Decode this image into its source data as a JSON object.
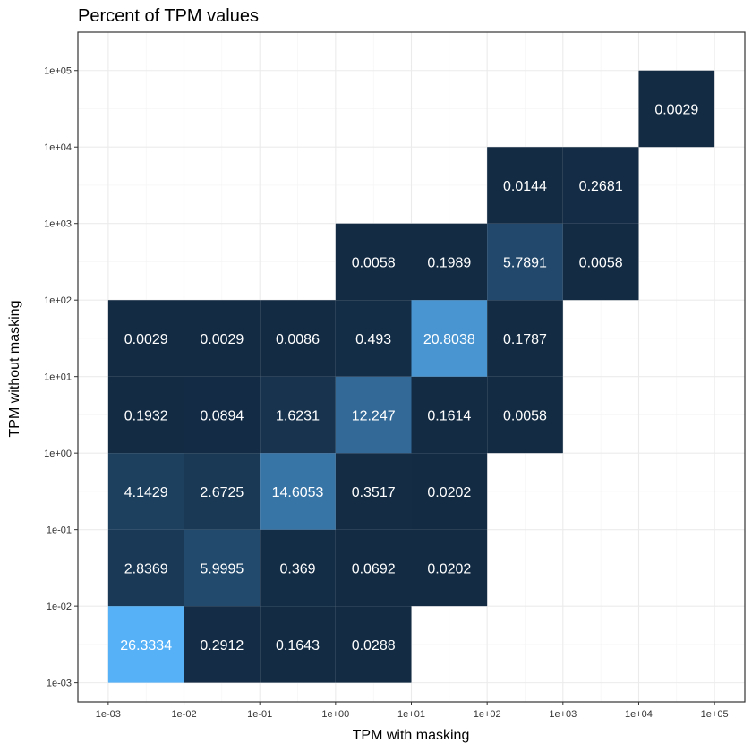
{
  "chart_data": {
    "type": "heatmap",
    "title": "Percent of TPM values",
    "xlabel": "TPM with masking",
    "ylabel": "TPM without masking",
    "x_ticks": [
      "1e-03",
      "1e-02",
      "1e-01",
      "1e+00",
      "1e+01",
      "1e+02",
      "1e+03",
      "1e+04",
      "1e+05"
    ],
    "y_ticks": [
      "1e-03",
      "1e-02",
      "1e-01",
      "1e+00",
      "1e+01",
      "1e+02",
      "1e+03",
      "1e+04",
      "1e+05"
    ],
    "xlim_log10": [
      -3.4,
      5.4
    ],
    "ylim_log10": [
      -3.25,
      5.5
    ],
    "grid": true,
    "color_scale": {
      "low": "#132B43",
      "high": "#56B1F7"
    },
    "cells": [
      {
        "x": [
          -3,
          -2
        ],
        "y": [
          -3,
          -2
        ],
        "value": 26.3334,
        "label": "26.3334"
      },
      {
        "x": [
          -2,
          -1
        ],
        "y": [
          -3,
          -2
        ],
        "value": 0.2912,
        "label": "0.2912"
      },
      {
        "x": [
          -1,
          0
        ],
        "y": [
          -3,
          -2
        ],
        "value": 0.1643,
        "label": "0.1643"
      },
      {
        "x": [
          0,
          1
        ],
        "y": [
          -3,
          -2
        ],
        "value": 0.0288,
        "label": "0.0288"
      },
      {
        "x": [
          -3,
          -2
        ],
        "y": [
          -2,
          -1
        ],
        "value": 2.8369,
        "label": "2.8369"
      },
      {
        "x": [
          -2,
          -1
        ],
        "y": [
          -2,
          -1
        ],
        "value": 5.9995,
        "label": "5.9995"
      },
      {
        "x": [
          -1,
          0
        ],
        "y": [
          -2,
          -1
        ],
        "value": 0.369,
        "label": "0.369"
      },
      {
        "x": [
          0,
          1
        ],
        "y": [
          -2,
          -1
        ],
        "value": 0.0692,
        "label": "0.0692"
      },
      {
        "x": [
          1,
          2
        ],
        "y": [
          -2,
          -1
        ],
        "value": 0.0202,
        "label": "0.0202"
      },
      {
        "x": [
          -3,
          -2
        ],
        "y": [
          -1,
          0
        ],
        "value": 4.1429,
        "label": "4.1429"
      },
      {
        "x": [
          -2,
          -1
        ],
        "y": [
          -1,
          0
        ],
        "value": 2.6725,
        "label": "2.6725"
      },
      {
        "x": [
          -1,
          0
        ],
        "y": [
          -1,
          0
        ],
        "value": 14.6053,
        "label": "14.6053"
      },
      {
        "x": [
          0,
          1
        ],
        "y": [
          -1,
          0
        ],
        "value": 0.3517,
        "label": "0.3517"
      },
      {
        "x": [
          1,
          2
        ],
        "y": [
          -1,
          0
        ],
        "value": 0.0202,
        "label": "0.0202"
      },
      {
        "x": [
          -3,
          -2
        ],
        "y": [
          0,
          1
        ],
        "value": 0.1932,
        "label": "0.1932"
      },
      {
        "x": [
          -2,
          -1
        ],
        "y": [
          0,
          1
        ],
        "value": 0.0894,
        "label": "0.0894"
      },
      {
        "x": [
          -1,
          0
        ],
        "y": [
          0,
          1
        ],
        "value": 1.6231,
        "label": "1.6231"
      },
      {
        "x": [
          0,
          1
        ],
        "y": [
          0,
          1
        ],
        "value": 12.247,
        "label": "12.247"
      },
      {
        "x": [
          1,
          2
        ],
        "y": [
          0,
          1
        ],
        "value": 0.1614,
        "label": "0.1614"
      },
      {
        "x": [
          2,
          3
        ],
        "y": [
          0,
          1
        ],
        "value": 0.0058,
        "label": "0.0058"
      },
      {
        "x": [
          -3,
          -2
        ],
        "y": [
          1,
          2
        ],
        "value": 0.0029,
        "label": "0.0029"
      },
      {
        "x": [
          -2,
          -1
        ],
        "y": [
          1,
          2
        ],
        "value": 0.0029,
        "label": "0.0029"
      },
      {
        "x": [
          -1,
          0
        ],
        "y": [
          1,
          2
        ],
        "value": 0.0086,
        "label": "0.0086"
      },
      {
        "x": [
          0,
          1
        ],
        "y": [
          1,
          2
        ],
        "value": 0.493,
        "label": "0.493"
      },
      {
        "x": [
          1,
          2
        ],
        "y": [
          1,
          2
        ],
        "value": 20.8038,
        "label": "20.8038"
      },
      {
        "x": [
          2,
          3
        ],
        "y": [
          1,
          2
        ],
        "value": 0.1787,
        "label": "0.1787"
      },
      {
        "x": [
          0,
          1
        ],
        "y": [
          2,
          3
        ],
        "value": 0.0058,
        "label": "0.0058"
      },
      {
        "x": [
          1,
          2
        ],
        "y": [
          2,
          3
        ],
        "value": 0.1989,
        "label": "0.1989"
      },
      {
        "x": [
          2,
          3
        ],
        "y": [
          2,
          3
        ],
        "value": 5.7891,
        "label": "5.7891"
      },
      {
        "x": [
          3,
          4
        ],
        "y": [
          2,
          3
        ],
        "value": 0.0058,
        "label": "0.0058"
      },
      {
        "x": [
          2,
          3
        ],
        "y": [
          3,
          4
        ],
        "value": 0.0144,
        "label": "0.0144"
      },
      {
        "x": [
          3,
          4
        ],
        "y": [
          3,
          4
        ],
        "value": 0.2681,
        "label": "0.2681"
      },
      {
        "x": [
          4,
          5
        ],
        "y": [
          4,
          5
        ],
        "value": 0.0029,
        "label": "0.0029"
      }
    ]
  }
}
